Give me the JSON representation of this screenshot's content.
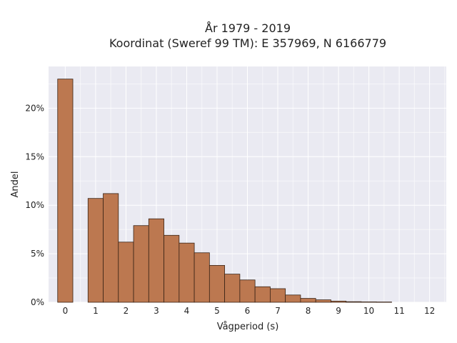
{
  "chart_data": {
    "type": "bar",
    "title_line1": "År 1979 - 2019",
    "title_line2": "Koordinat (Sweref 99 TM): E 357969, N 6166779",
    "xlabel": "Vågperiod (s)",
    "ylabel": "Andel",
    "xlim": [
      -0.55,
      12.55
    ],
    "ylim": [
      0,
      24.3
    ],
    "grid": true,
    "bin_width": 0.5,
    "x_ticks": [
      0,
      1,
      2,
      3,
      4,
      5,
      6,
      7,
      8,
      9,
      10,
      11,
      12
    ],
    "x_tick_labels": [
      "0",
      "1",
      "2",
      "3",
      "4",
      "5",
      "6",
      "7",
      "8",
      "9",
      "10",
      "11",
      "12"
    ],
    "y_ticks": [
      0,
      5,
      10,
      15,
      20
    ],
    "y_tick_labels": [
      "0%",
      "5%",
      "10%",
      "15%",
      "20%"
    ],
    "bins": [
      {
        "start": -0.25,
        "value": 23.0
      },
      {
        "start": 0.75,
        "value": 10.7
      },
      {
        "start": 1.25,
        "value": 11.2
      },
      {
        "start": 1.75,
        "value": 6.2
      },
      {
        "start": 2.25,
        "value": 7.9
      },
      {
        "start": 2.75,
        "value": 8.6
      },
      {
        "start": 3.25,
        "value": 6.9
      },
      {
        "start": 3.75,
        "value": 6.1
      },
      {
        "start": 4.25,
        "value": 5.1
      },
      {
        "start": 4.75,
        "value": 3.8
      },
      {
        "start": 5.25,
        "value": 2.9
      },
      {
        "start": 5.75,
        "value": 2.3
      },
      {
        "start": 6.25,
        "value": 1.6
      },
      {
        "start": 6.75,
        "value": 1.4
      },
      {
        "start": 7.25,
        "value": 0.75
      },
      {
        "start": 7.75,
        "value": 0.4
      },
      {
        "start": 8.25,
        "value": 0.25
      },
      {
        "start": 8.75,
        "value": 0.12
      },
      {
        "start": 9.25,
        "value": 0.06
      },
      {
        "start": 9.75,
        "value": 0.04
      },
      {
        "start": 10.25,
        "value": 0.03
      }
    ],
    "colors": {
      "bar_fill": "#bc7850",
      "bar_edge": "#3a2416",
      "plot_background": "#eaeaf2",
      "grid": "#ffffff"
    }
  }
}
